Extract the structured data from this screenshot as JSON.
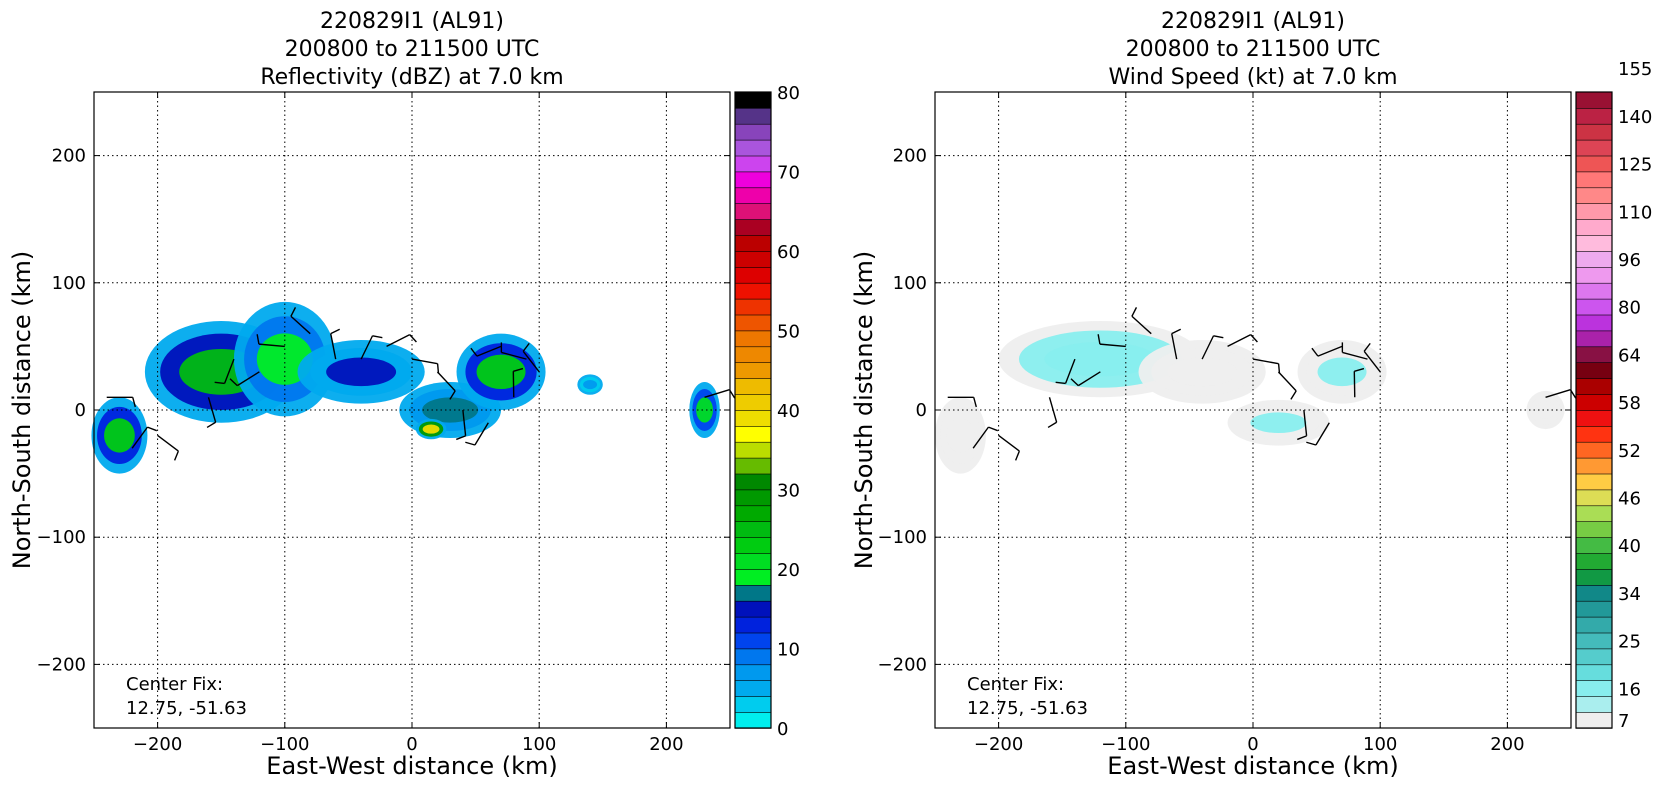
{
  "chart_data": [
    {
      "type": "heatmap",
      "panel": "left",
      "title_lines": [
        "220829I1 (AL91)",
        "200800 to 211500 UTC",
        "Reflectivity (dBZ) at 7.0 km"
      ],
      "xlabel": "East-West distance (km)",
      "ylabel": "North-South distance (km)",
      "xlim": [
        -250,
        250
      ],
      "ylim": [
        -250,
        250
      ],
      "xticks": [
        -200,
        -100,
        0,
        100,
        200
      ],
      "yticks": [
        -200,
        -100,
        0,
        100,
        200
      ],
      "grid": true,
      "annotation_lines": [
        "Center Fix:",
        "12.75, -51.63"
      ],
      "colorbar": {
        "ticks": [
          0,
          10,
          20,
          30,
          40,
          50,
          60,
          70,
          80
        ],
        "range": [
          0,
          80
        ],
        "colors": [
          "#00eeee",
          "#00ccee",
          "#00aaee",
          "#0099ee",
          "#0077ee",
          "#0044ee",
          "#0022dd",
          "#0011bb",
          "#007788",
          "#00ee22",
          "#00dd22",
          "#00cc11",
          "#00bb11",
          "#00aa00",
          "#009900",
          "#008800",
          "#66bb00",
          "#bbdd00",
          "#ffff00",
          "#eedd00",
          "#eecc00",
          "#eebb00",
          "#ee9900",
          "#ee8800",
          "#ee7700",
          "#ee5500",
          "#ee3300",
          "#ee1100",
          "#dd0000",
          "#cc0000",
          "#bb0000",
          "#aa0022",
          "#dd1177",
          "#ee00aa",
          "#ee00dd",
          "#cc44ee",
          "#aa55dd",
          "#8844bb",
          "#553388",
          "#000000"
        ]
      },
      "echoes": [
        {
          "x": -230,
          "y": -20,
          "dbz": 22
        },
        {
          "x": -150,
          "y": 30,
          "dbz": 25
        },
        {
          "x": -100,
          "y": 40,
          "dbz": 18
        },
        {
          "x": -40,
          "y": 30,
          "dbz": 14
        },
        {
          "x": 30,
          "y": 0,
          "dbz": 16
        },
        {
          "x": 70,
          "y": 30,
          "dbz": 22
        },
        {
          "x": 15,
          "y": -15,
          "dbz": 38
        },
        {
          "x": 230,
          "y": 0,
          "dbz": 20
        },
        {
          "x": 140,
          "y": 20,
          "dbz": 6
        }
      ]
    },
    {
      "type": "heatmap",
      "panel": "right",
      "title_lines": [
        "220829I1 (AL91)",
        "200800 to 211500 UTC",
        "Wind Speed (kt) at 7.0 km"
      ],
      "xlabel": "East-West distance (km)",
      "ylabel": "North-South distance (km)",
      "xlim": [
        -250,
        250
      ],
      "ylim": [
        -250,
        250
      ],
      "xticks": [
        -200,
        -100,
        0,
        100,
        200
      ],
      "yticks": [
        -200,
        -100,
        0,
        100,
        200
      ],
      "grid": true,
      "annotation_lines": [
        "Center Fix:",
        "12.75, -51.63"
      ],
      "colorbar": {
        "ticks": [
          7,
          16,
          25,
          34,
          40,
          46,
          52,
          58,
          64,
          80,
          96,
          110,
          125,
          140,
          155
        ],
        "colors": [
          "#eeeeee",
          "#aaeeee",
          "#88eeee",
          "#66dddd",
          "#55cccc",
          "#44bbbb",
          "#33aaaa",
          "#229999",
          "#118888",
          "#119944",
          "#22aa33",
          "#44bb44",
          "#77cc44",
          "#aadd55",
          "#dddd55",
          "#ffcc44",
          "#ff9933",
          "#ff6622",
          "#ff3311",
          "#ee1111",
          "#cc0000",
          "#aa0000",
          "#770011",
          "#881144",
          "#aa22aa",
          "#bb33dd",
          "#cc55ee",
          "#dd77ee",
          "#ee99ee",
          "#eeaaee",
          "#ffbbdd",
          "#ffaacc",
          "#ff99aa",
          "#ff8888",
          "#ff7777",
          "#ee5555",
          "#dd4455",
          "#cc3344",
          "#bb2244",
          "#991133"
        ]
      },
      "wind_regions": [
        {
          "x": -230,
          "y": -20,
          "kt": 12
        },
        {
          "x": -120,
          "y": 40,
          "kt": 22
        },
        {
          "x": -40,
          "y": 30,
          "kt": 14
        },
        {
          "x": 20,
          "y": -10,
          "kt": 16
        },
        {
          "x": 70,
          "y": 30,
          "kt": 18
        },
        {
          "x": 230,
          "y": 0,
          "kt": 7
        }
      ]
    }
  ]
}
